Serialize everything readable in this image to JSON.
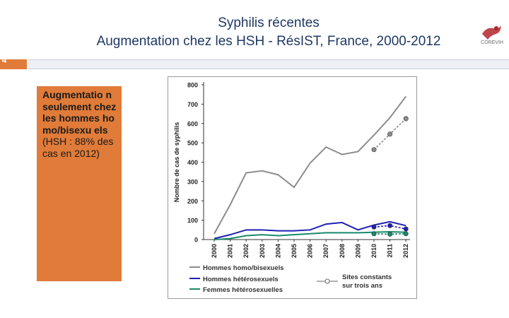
{
  "header": {
    "title_line1": "Syphilis récentes",
    "title_line2": "Augmentation chez les HSH - RésIST, France, 2000-2012",
    "page_number": "4"
  },
  "sidebar_text": {
    "bold_part": "Augmentatio n seulement chez les hommes homo/bisexu els",
    "normal_part": " (HSH : 88% des cas en 2012)"
  },
  "logo": {
    "icon": "corevih-logo-icon",
    "text": "COREVIH"
  },
  "colors": {
    "accent": "#e07b39",
    "title": "#1f3864",
    "msm": "#8c8c8c",
    "hetero_men": "#1f1fb5",
    "hetero_women": "#1a8a6a"
  },
  "chart_data": {
    "type": "line",
    "ylabel": "Nombre de cas de syphilis",
    "xlabel": "",
    "ylim": [
      0,
      800
    ],
    "yticks": [
      0,
      100,
      200,
      300,
      400,
      500,
      600,
      700,
      800
    ],
    "x": [
      "2000",
      "2001",
      "2002",
      "2003",
      "2004",
      "2005",
      "2006",
      "2007",
      "2008",
      "2009",
      "2010",
      "2011",
      "2012"
    ],
    "series": [
      {
        "name": "Hommes homo/bisexuels",
        "color": "#8c8c8c",
        "values": [
          30,
          180,
          345,
          355,
          335,
          270,
          395,
          478,
          440,
          455,
          540,
          630,
          740
        ]
      },
      {
        "name": "Hommes hétérosexuels",
        "color": "#1f1fb5",
        "values": [
          5,
          25,
          50,
          50,
          45,
          45,
          50,
          80,
          88,
          50,
          75,
          92,
          72
        ]
      },
      {
        "name": "Femmes hétérosexuelles",
        "color": "#1a8a6a",
        "values": [
          0,
          5,
          20,
          25,
          20,
          25,
          30,
          35,
          35,
          35,
          38,
          40,
          38
        ]
      }
    ],
    "constant_sites": {
      "name": "Sites constants sur trois ans",
      "x": [
        "2010",
        "2011",
        "2012"
      ],
      "series": [
        {
          "color": "#8c8c8c",
          "values": [
            465,
            545,
            625
          ]
        },
        {
          "color": "#1f1fb5",
          "values": [
            65,
            72,
            55
          ]
        },
        {
          "color": "#1a8a6a",
          "values": [
            30,
            28,
            30
          ]
        }
      ]
    },
    "legend": {
      "placement": "bottom",
      "entries": [
        "Hommes homo/bisexuels",
        "Hommes hétérosexuels",
        "Femmes hétérosexuelles"
      ],
      "sites_label_line1": "Sites constants",
      "sites_label_line2": "sur trois ans"
    },
    "grid": false
  }
}
